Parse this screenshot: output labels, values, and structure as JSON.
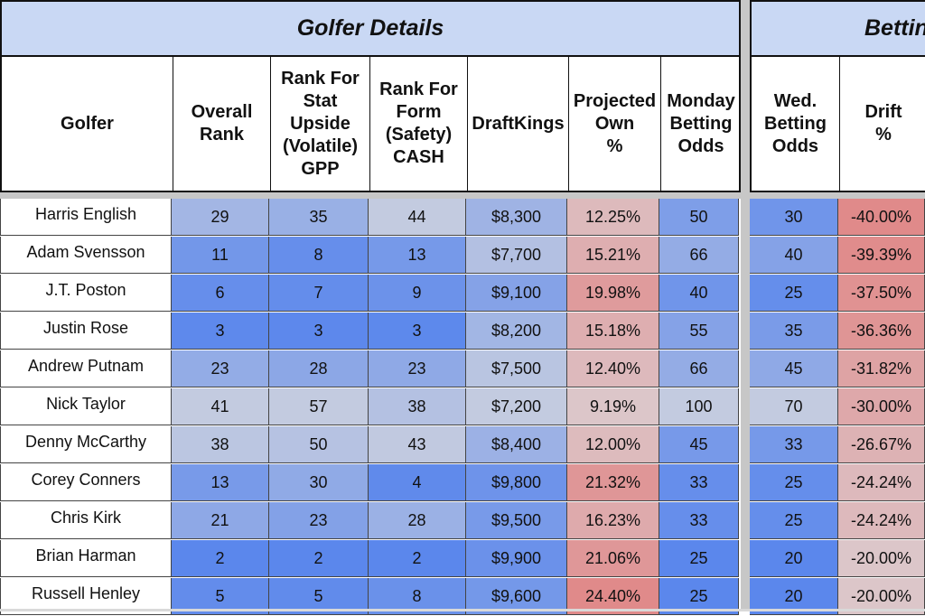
{
  "bands": {
    "golfer_details": "Golfer Details",
    "betting": "Betting"
  },
  "headers": {
    "golfer": "Golfer",
    "overall_rank": "Overall\nRank",
    "rank_stat": "Rank For\nStat\nUpside\n(Volatile)\nGPP",
    "rank_form": "Rank For\nForm\n(Safety)\nCASH",
    "draftkings": "DraftKings",
    "projected_own": "Projected\nOwn\n%",
    "monday_odds": "Monday\nBetting\nOdds",
    "wed_odds": "Wed.\nBetting\nOdds",
    "drift": "Drift\n%"
  },
  "colors": {
    "band_bg": "#c9d8f4",
    "separator": "#c7c7c7",
    "blue_strong": "#5b87ec",
    "blue_light": "#c3cbe0",
    "red_strong": "#e08a8a",
    "red_light": "#dcc6c9"
  },
  "rows": [
    {
      "golfer": "Harris English",
      "overall": "29",
      "stat": "35",
      "form": "44",
      "dk": "$8,300",
      "own": "12.25%",
      "monday": "50",
      "wed": "30",
      "drift": "-40.00%"
    },
    {
      "golfer": "Adam Svensson",
      "overall": "11",
      "stat": "8",
      "form": "13",
      "dk": "$7,700",
      "own": "15.21%",
      "monday": "66",
      "wed": "40",
      "drift": "-39.39%"
    },
    {
      "golfer": "J.T. Poston",
      "overall": "6",
      "stat": "7",
      "form": "9",
      "dk": "$9,100",
      "own": "19.98%",
      "monday": "40",
      "wed": "25",
      "drift": "-37.50%"
    },
    {
      "golfer": "Justin Rose",
      "overall": "3",
      "stat": "3",
      "form": "3",
      "dk": "$8,200",
      "own": "15.18%",
      "monday": "55",
      "wed": "35",
      "drift": "-36.36%"
    },
    {
      "golfer": "Andrew Putnam",
      "overall": "23",
      "stat": "28",
      "form": "23",
      "dk": "$7,500",
      "own": "12.40%",
      "monday": "66",
      "wed": "45",
      "drift": "-31.82%"
    },
    {
      "golfer": "Nick Taylor",
      "overall": "41",
      "stat": "57",
      "form": "38",
      "dk": "$7,200",
      "own": "9.19%",
      "monday": "100",
      "wed": "70",
      "drift": "-30.00%"
    },
    {
      "golfer": "Denny McCarthy",
      "overall": "38",
      "stat": "50",
      "form": "43",
      "dk": "$8,400",
      "own": "12.00%",
      "monday": "45",
      "wed": "33",
      "drift": "-26.67%"
    },
    {
      "golfer": "Corey Conners",
      "overall": "13",
      "stat": "30",
      "form": "4",
      "dk": "$9,800",
      "own": "21.32%",
      "monday": "33",
      "wed": "25",
      "drift": "-24.24%"
    },
    {
      "golfer": "Chris Kirk",
      "overall": "21",
      "stat": "23",
      "form": "28",
      "dk": "$9,500",
      "own": "16.23%",
      "monday": "33",
      "wed": "25",
      "drift": "-24.24%"
    },
    {
      "golfer": "Brian Harman",
      "overall": "2",
      "stat": "2",
      "form": "2",
      "dk": "$9,900",
      "own": "21.06%",
      "monday": "25",
      "wed": "20",
      "drift": "-20.00%"
    },
    {
      "golfer": "Russell Henley",
      "overall": "5",
      "stat": "5",
      "form": "8",
      "dk": "$9,600",
      "own": "24.40%",
      "monday": "25",
      "wed": "20",
      "drift": "-20.00%"
    }
  ]
}
